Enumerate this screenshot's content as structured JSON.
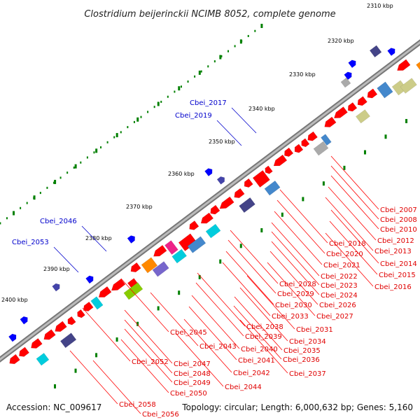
{
  "title": "Clostridium beijerinckii NCIMB 8052, complete genome",
  "footer": {
    "accession": "Accession: NC_009617",
    "summary": "Topology: circular; Length: 6,000,632 bp; Genes: 5,160"
  },
  "kbp_labels": [
    "2310 kbp",
    "2320 kbp",
    "2330 kbp",
    "2340 kbp",
    "2350 kbp",
    "2360 kbp",
    "2370 kbp",
    "2380 kbp",
    "2390 kbp",
    "2400 kbp"
  ],
  "blue_labels": [
    "Cbei_2017",
    "Cbei_2019",
    "Cbei_2046",
    "Cbei_2053"
  ],
  "red_labels": [
    "Cbei_2007",
    "Cbei_2008",
    "Cbei_2010",
    "Cbei_2012",
    "Cbei_2013",
    "Cbei_2014",
    "Cbei_2015",
    "Cbei_2016",
    "Cbei_2018",
    "Cbei_2020",
    "Cbei_2021",
    "Cbei_2022",
    "Cbei_2023",
    "Cbei_2024",
    "Cbei_2026",
    "Cbei_2027",
    "Cbei_2028",
    "Cbei_2029",
    "Cbei_2030",
    "Cbei_2031",
    "Cbei_2033",
    "Cbei_2034",
    "Cbei_2035",
    "Cbei_2036",
    "Cbei_2037",
    "Cbei_2038",
    "Cbei_2039",
    "Cbei_2040",
    "Cbei_2041",
    "Cbei_2042",
    "Cbei_2043",
    "Cbei_2044",
    "Cbei_2045",
    "Cbei_2047",
    "Cbei_2048",
    "Cbei_2049",
    "Cbei_2050",
    "Cbei_2052",
    "Cbei_2056",
    "Cbei_2058"
  ],
  "colors": {
    "backbone": "#888888",
    "gene_forward": "#ff0000",
    "gene_reverse": "#0000ff",
    "tick": "#008000",
    "label_red": "#e00000",
    "label_blue": "#0000cc"
  }
}
